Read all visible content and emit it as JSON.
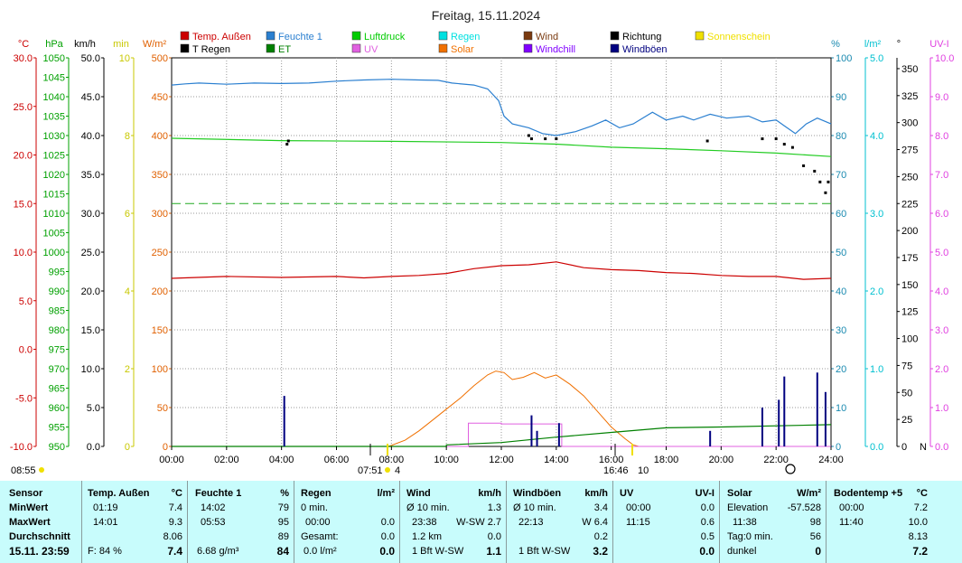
{
  "title": "Freitag, 15.11.2024",
  "chart_data": {
    "type": "line",
    "title": "Freitag, 15.11.2024",
    "legend": [
      {
        "label": "Temp. Außen",
        "color": "#cc0000"
      },
      {
        "label": "Feuchte 1",
        "color": "#2a7fd0"
      },
      {
        "label": "Luftdruck",
        "color": "#00cc00"
      },
      {
        "label": "Regen",
        "color": "#00e0e0"
      },
      {
        "label": "Wind",
        "color": "#7a3a10"
      },
      {
        "label": "Richtung",
        "color": "#000000"
      },
      {
        "label": "Sonnenschein",
        "color": "#f0e000"
      },
      {
        "label": "T Regen",
        "color": "#000000"
      },
      {
        "label": "ET",
        "color": "#008000"
      },
      {
        "label": "UV",
        "color": "#e060e0"
      },
      {
        "label": "Solar",
        "color": "#f07000"
      },
      {
        "label": "Windchill",
        "color": "#8000ff"
      },
      {
        "label": "Windböen",
        "color": "#000080"
      }
    ],
    "axes": {
      "temp": {
        "unit": "°C",
        "color": "#cc0000",
        "ticks": [
          "30.0",
          "25.0",
          "20.0",
          "15.0",
          "10.0",
          "5.0",
          "0.0",
          "-5.0",
          "-10.0"
        ]
      },
      "hpa": {
        "unit": "hPa",
        "color": "#00a000",
        "ticks": [
          "1050",
          "1045",
          "1040",
          "1035",
          "1030",
          "1025",
          "1020",
          "1015",
          "1010",
          "1005",
          "1000",
          "995",
          "990",
          "985",
          "980",
          "975",
          "970",
          "965",
          "960",
          "955",
          "950"
        ]
      },
      "kmh": {
        "unit": "km/h",
        "color": "#000000",
        "ticks": [
          "50.0",
          "45.0",
          "40.0",
          "35.0",
          "30.0",
          "25.0",
          "20.0",
          "15.0",
          "10.0",
          "5.0",
          "0.0"
        ]
      },
      "min": {
        "unit": "min",
        "color": "#c8c800",
        "ticks": [
          "10",
          "8",
          "6",
          "4",
          "2",
          "0"
        ]
      },
      "wm2": {
        "unit": "W/m²",
        "color": "#e06000",
        "ticks": [
          "500",
          "450",
          "400",
          "350",
          "300",
          "250",
          "200",
          "150",
          "100",
          "50",
          "0"
        ]
      },
      "pct": {
        "unit": "%",
        "color": "#1a8ab0",
        "ticks": [
          "100",
          "90",
          "80",
          "70",
          "60",
          "50",
          "40",
          "30",
          "20",
          "10",
          "0"
        ]
      },
      "lm2": {
        "unit": "l/m²",
        "color": "#00c0d0",
        "ticks": [
          "5.0",
          "4.0",
          "3.0",
          "2.0",
          "1.0",
          "0.0"
        ]
      },
      "deg": {
        "unit": "°",
        "color": "#000000",
        "ticks": [
          "350",
          "325",
          "300",
          "275",
          "250",
          "225",
          "200",
          "175",
          "150",
          "125",
          "100",
          "75",
          "50",
          "25",
          "0"
        ],
        "zero_label": "N"
      },
      "uvi": {
        "unit": "UV-I",
        "color": "#e040e0",
        "ticks": [
          "10.0",
          "9.0",
          "8.0",
          "7.0",
          "6.0",
          "5.0",
          "4.0",
          "3.0",
          "2.0",
          "1.0",
          "0.0"
        ]
      }
    },
    "x_ticks": [
      "00:00",
      "02:00",
      "04:00",
      "06:00",
      "08:00",
      "10:00",
      "12:00",
      "14:00",
      "16:00",
      "18:00",
      "20:00",
      "22:00",
      "24:00"
    ],
    "x_range": [
      0,
      24
    ],
    "grid": true,
    "sun_markers": {
      "left": "08:55",
      "sunrise": "07:51",
      "sunrise_extra": "4",
      "sunset": "16:46",
      "sunset_extra": "10"
    },
    "series": {
      "humidity": [
        [
          0,
          93
        ],
        [
          0.5,
          93.3
        ],
        [
          1,
          93.5
        ],
        [
          2,
          93.2
        ],
        [
          3,
          93.5
        ],
        [
          4,
          93.4
        ],
        [
          5,
          93.5
        ],
        [
          6,
          94
        ],
        [
          7,
          94.3
        ],
        [
          8,
          94.5
        ],
        [
          9,
          94.3
        ],
        [
          9.7,
          94.2
        ],
        [
          10.2,
          93.5
        ],
        [
          11,
          93
        ],
        [
          11.5,
          92
        ],
        [
          11.9,
          89
        ],
        [
          12.1,
          85
        ],
        [
          12.4,
          83
        ],
        [
          13,
          82
        ],
        [
          13.5,
          80.5
        ],
        [
          14,
          80
        ],
        [
          14.7,
          81
        ],
        [
          15.3,
          82.5
        ],
        [
          15.8,
          84
        ],
        [
          16.3,
          82
        ],
        [
          16.8,
          83
        ],
        [
          17.5,
          86
        ],
        [
          18,
          84
        ],
        [
          18.6,
          85
        ],
        [
          19,
          84
        ],
        [
          19.6,
          85.5
        ],
        [
          20.2,
          84.5
        ],
        [
          21,
          85
        ],
        [
          21.5,
          83.5
        ],
        [
          22,
          84
        ],
        [
          22.3,
          82.5
        ],
        [
          22.7,
          80.5
        ],
        [
          23.1,
          83
        ],
        [
          23.5,
          84.5
        ],
        [
          24,
          83
        ]
      ],
      "pressure": [
        [
          0,
          1029.3
        ],
        [
          4,
          1028.7
        ],
        [
          8,
          1028.5
        ],
        [
          12,
          1028.2
        ],
        [
          14,
          1027.8
        ],
        [
          16,
          1027.0
        ],
        [
          18,
          1026.6
        ],
        [
          20,
          1026.1
        ],
        [
          22,
          1025.5
        ],
        [
          24,
          1024.6
        ]
      ],
      "pressure_ref": 1012.5,
      "temperature": [
        [
          0,
          7.3
        ],
        [
          2,
          7.5
        ],
        [
          4,
          7.4
        ],
        [
          6,
          7.5
        ],
        [
          7,
          7.35
        ],
        [
          8,
          7.5
        ],
        [
          9,
          7.6
        ],
        [
          10,
          7.8
        ],
        [
          11,
          8.3
        ],
        [
          12,
          8.6
        ],
        [
          13,
          8.7
        ],
        [
          14,
          9.0
        ],
        [
          15,
          8.4
        ],
        [
          16,
          8.2
        ],
        [
          17,
          8.1
        ],
        [
          18,
          7.9
        ],
        [
          19,
          7.8
        ],
        [
          20,
          7.6
        ],
        [
          21,
          7.5
        ],
        [
          22,
          7.5
        ],
        [
          23,
          7.2
        ],
        [
          24,
          7.3
        ]
      ],
      "solar": [
        [
          7.9,
          0
        ],
        [
          8.5,
          8
        ],
        [
          9,
          20
        ],
        [
          9.5,
          34
        ],
        [
          10,
          48
        ],
        [
          10.5,
          62
        ],
        [
          11,
          78
        ],
        [
          11.5,
          92
        ],
        [
          11.8,
          97
        ],
        [
          12.1,
          95
        ],
        [
          12.4,
          86
        ],
        [
          12.8,
          89
        ],
        [
          13.2,
          95
        ],
        [
          13.6,
          88
        ],
        [
          14,
          92
        ],
        [
          14.5,
          80
        ],
        [
          15,
          65
        ],
        [
          15.5,
          45
        ],
        [
          16,
          25
        ],
        [
          16.5,
          10
        ],
        [
          16.8,
          2
        ],
        [
          17,
          0
        ]
      ],
      "uv_index": [
        [
          0,
          0
        ],
        [
          10.8,
          0
        ],
        [
          10.8,
          0.6
        ],
        [
          12,
          0.6
        ],
        [
          12,
          0.58
        ],
        [
          14.2,
          0.58
        ],
        [
          14.2,
          0
        ],
        [
          24,
          0
        ]
      ],
      "et_mm": [
        [
          0,
          0
        ],
        [
          10,
          0
        ],
        [
          10,
          0.02
        ],
        [
          12,
          0.05
        ],
        [
          14,
          0.12
        ],
        [
          16,
          0.18
        ],
        [
          18,
          0.24
        ],
        [
          20,
          0.25
        ],
        [
          24,
          0.28
        ]
      ],
      "gusts_kmh": [
        [
          4.1,
          6.5
        ],
        [
          13.1,
          4
        ],
        [
          13.3,
          2
        ],
        [
          14.1,
          3
        ],
        [
          19.6,
          2
        ],
        [
          21.5,
          5
        ],
        [
          22.1,
          6
        ],
        [
          22.3,
          9
        ],
        [
          23.5,
          9.5
        ],
        [
          23.8,
          7
        ]
      ],
      "direction": [
        [
          4.2,
          280
        ],
        [
          4.25,
          283
        ],
        [
          13,
          288
        ],
        [
          13.1,
          285
        ],
        [
          13.6,
          285
        ],
        [
          14,
          285
        ],
        [
          19.5,
          283
        ],
        [
          21.5,
          285
        ],
        [
          22,
          285
        ],
        [
          22.3,
          280
        ],
        [
          22.6,
          277
        ],
        [
          23,
          260
        ],
        [
          23.4,
          255
        ],
        [
          23.6,
          245
        ],
        [
          23.8,
          235
        ],
        [
          23.9,
          245
        ]
      ]
    }
  },
  "stats": {
    "sensor": {
      "header": "Sensor",
      "min": "MinWert",
      "max": "MaxWert",
      "avg": "Durchschnitt",
      "now": "15.11. 23:59"
    },
    "temp": {
      "header": "Temp. Außen",
      "unit": "°C",
      "min_time": "01:19",
      "min_val": "7.4",
      "max_time": "14:01",
      "max_val": "9.3",
      "avg": "8.06",
      "extra": "F: 84 %",
      "now": "7.4"
    },
    "hum": {
      "header": "Feuchte 1",
      "unit": "%",
      "min_time": "14:02",
      "min_val": "79",
      "max_time": "05:53",
      "max_val": "95",
      "avg": "89",
      "extra": "6.68 g/m³",
      "now": "84"
    },
    "rain": {
      "header": "Regen",
      "unit": "l/m²",
      "r1": "0 min.",
      "r2_time": "00:00",
      "r2_val": "0.0",
      "r3_label": "Gesamt:",
      "r3_val": "0.0",
      "r4_label": "0.0 l/m²",
      "now": "0.0"
    },
    "wind": {
      "header": "Wind",
      "unit": "km/h",
      "r1": "Ø 10 min.",
      "r1_val": "1.3",
      "r2_time": "23:38",
      "r2_val": "W-SW 2.7",
      "r3_label": "1.2 km",
      "r3_val": "0.0",
      "r4_label": "1 Bft W-SW",
      "now": "1.1"
    },
    "gust": {
      "header": "Windböen",
      "unit": "km/h",
      "r1": "Ø 10 min.",
      "r1_val": "3.4",
      "r2_time": "22:13",
      "r2_val": "W 6.4",
      "r3_val": "0.2",
      "r4_label": "1 Bft W-SW",
      "now": "3.2"
    },
    "uv": {
      "header": "UV",
      "unit": "UV-I",
      "r1_time": "00:00",
      "r1_val": "0.0",
      "r2_time": "11:15",
      "r2_val": "0.6",
      "r3_val": "0.5",
      "now": "0.0"
    },
    "solar": {
      "header": "Solar",
      "unit": "W/m²",
      "r1_label": "Elevation",
      "r1_val": "-57.528",
      "r2_time": "11:38",
      "r2_val": "98",
      "r3_label": "Tag:0 min.",
      "r3_val": "56",
      "r4_label": "dunkel",
      "now": "0"
    },
    "soil": {
      "header": "Bodentemp +5",
      "unit": "°C",
      "r1_time": "00:00",
      "r1_val": "7.2",
      "r2_time": "11:40",
      "r2_val": "10.0",
      "r3_val": "8.13",
      "now": "7.2"
    }
  }
}
